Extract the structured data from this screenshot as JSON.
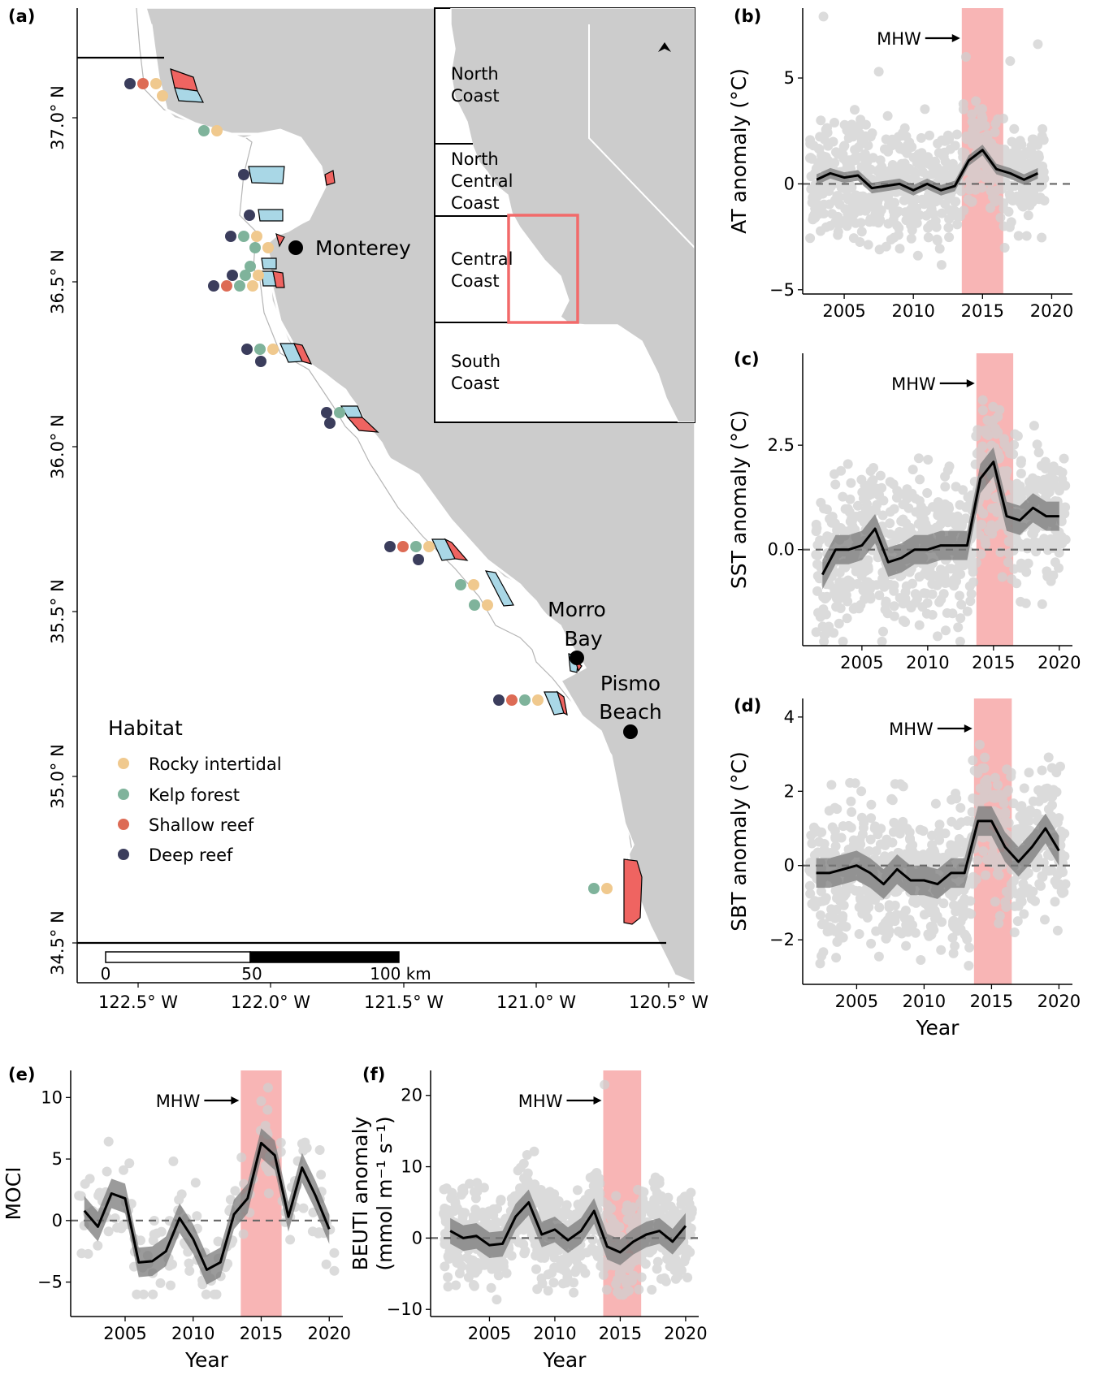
{
  "panel_labels": {
    "a": "(a)",
    "b": "(b)",
    "c": "(c)",
    "d": "(d)",
    "e": "(e)",
    "f": "(f)"
  },
  "colors": {
    "rocky_intertidal": "#f0c98e",
    "kelp_forest": "#7fb39b",
    "shallow_reef": "#dd6b55",
    "deep_reef": "#3b3d5c",
    "mpa_fill_red": "#ef6461",
    "mpa_fill_blue": "#a9d7e6",
    "land": "#cccccc",
    "mhw_band": "#f7a8a8",
    "points": "#d0d0d0",
    "ribbon": "#7a7a7a",
    "inset_box": "#f26a6a"
  },
  "map": {
    "lat_labels": [
      "37.0° N",
      "36.5° N",
      "36.0° N",
      "35.5° N",
      "35.0° N",
      "34.5° N"
    ],
    "lon_labels": [
      "122.5° W",
      "122.0° W",
      "121.5° W",
      "121.0° W",
      "120.5° W"
    ],
    "places": {
      "monterey": "Monterey",
      "morro": "Morro",
      "bay": "Bay",
      "pismo": "Pismo",
      "beach": "Beach"
    },
    "legend": {
      "title": "Habitat",
      "items": [
        "Rocky intertidal",
        "Kelp forest",
        "Shallow reef",
        "Deep reef"
      ]
    },
    "scalebar": {
      "labels": [
        "0",
        "50",
        "100 km"
      ]
    },
    "inset": {
      "regions": [
        [
          "North",
          "Coast"
        ],
        [
          "North",
          "Central",
          "Coast"
        ],
        [
          "Central",
          "Coast"
        ],
        [
          "South",
          "Coast"
        ]
      ]
    }
  },
  "chart_data": [
    {
      "panel": "b",
      "type": "line",
      "ylabel": "AT anomaly (°C)",
      "xlabel": "",
      "annotation": "MHW",
      "mhw_period": [
        2013.5,
        2016.5
      ],
      "xlim": [
        2002,
        2021.5
      ],
      "ylim": [
        -5.2,
        8.3
      ],
      "xticks": [
        2005,
        2010,
        2015,
        2020
      ],
      "yticks": [
        -5,
        0,
        5
      ],
      "mean_line": {
        "x": [
          2003,
          2004,
          2005,
          2006,
          2007,
          2008,
          2009,
          2010,
          2011,
          2012,
          2013,
          2014,
          2015,
          2016,
          2017,
          2018,
          2019
        ],
        "y": [
          0.2,
          0.5,
          0.3,
          0.4,
          -0.2,
          -0.1,
          0.0,
          -0.3,
          0.0,
          -0.3,
          -0.1,
          1.1,
          1.6,
          0.7,
          0.5,
          0.2,
          0.5
        ]
      },
      "ribbon_halfwidth": 0.25,
      "points_range": [
        -4.5,
        5
      ],
      "outliers": [
        [
          2003.5,
          7.9
        ],
        [
          2007.5,
          5.3
        ],
        [
          2013.8,
          6.0
        ],
        [
          2017,
          5.8
        ],
        [
          2019,
          6.6
        ]
      ]
    },
    {
      "panel": "c",
      "type": "line",
      "ylabel": "SST anomaly (°C)",
      "xlabel": "",
      "annotation": "MHW",
      "mhw_period": [
        2013.7,
        2016.5
      ],
      "xlim": [
        2000.5,
        2021
      ],
      "ylim": [
        -2.3,
        4.7
      ],
      "xticks": [
        2005,
        2010,
        2015,
        2020
      ],
      "yticks": [
        0.0,
        2.5
      ],
      "mean_line": {
        "x": [
          2002,
          2003,
          2004,
          2005,
          2006,
          2007,
          2008,
          2009,
          2010,
          2011,
          2012,
          2013,
          2014,
          2015,
          2016,
          2017,
          2018,
          2019,
          2020
        ],
        "y": [
          -0.6,
          0.0,
          0.0,
          0.1,
          0.5,
          -0.3,
          -0.2,
          0.0,
          0.0,
          0.1,
          0.1,
          0.1,
          1.7,
          2.1,
          0.8,
          0.7,
          1.0,
          0.8,
          0.8
        ]
      },
      "ribbon_halfwidth": 0.35,
      "points_range": [
        -2.2,
        4.3
      ],
      "outliers": []
    },
    {
      "panel": "d",
      "type": "line",
      "ylabel": "SBT anomaly (°C)",
      "xlabel": "Year",
      "annotation": "MHW",
      "mhw_period": [
        2013.7,
        2016.5
      ],
      "xlim": [
        2001,
        2021
      ],
      "ylim": [
        -3.2,
        4.5
      ],
      "xticks": [
        2005,
        2010,
        2015,
        2020
      ],
      "yticks": [
        -2,
        0,
        2,
        4
      ],
      "mean_line": {
        "x": [
          2002,
          2003,
          2004,
          2005,
          2006,
          2007,
          2008,
          2009,
          2010,
          2011,
          2012,
          2013,
          2014,
          2015,
          2016,
          2017,
          2018,
          2019,
          2020
        ],
        "y": [
          -0.2,
          -0.2,
          -0.1,
          0.0,
          -0.2,
          -0.5,
          -0.1,
          -0.4,
          -0.4,
          -0.5,
          -0.2,
          -0.2,
          1.2,
          1.2,
          0.5,
          0.1,
          0.5,
          1.0,
          0.4
        ]
      },
      "ribbon_halfwidth": 0.4,
      "points_range": [
        -2.8,
        4.2
      ],
      "outliers": []
    },
    {
      "panel": "e",
      "type": "line",
      "ylabel": "MOCI",
      "xlabel": "Year",
      "annotation": "MHW",
      "mhw_period": [
        2013.5,
        2016.5
      ],
      "xlim": [
        2001,
        2021
      ],
      "ylim": [
        -7.8,
        12.2
      ],
      "xticks": [
        2005,
        2010,
        2015,
        2020
      ],
      "yticks": [
        -5,
        0,
        5,
        10
      ],
      "mean_line": {
        "x": [
          2002,
          2003,
          2004,
          2005,
          2006,
          2007,
          2008,
          2009,
          2010,
          2011,
          2012,
          2013,
          2014,
          2015,
          2016,
          2017,
          2018,
          2019,
          2020
        ],
        "y": [
          0.8,
          -0.5,
          2.2,
          1.8,
          -3.4,
          -3.3,
          -2.5,
          0.2,
          -1.5,
          -4.0,
          -3.4,
          0.5,
          1.8,
          6.3,
          5.3,
          0.3,
          4.3,
          2.0,
          -0.7
        ]
      },
      "ribbon_halfwidth": 1.2,
      "points_range": [
        -6,
        9
      ],
      "outliers": [
        [
          2015,
          9.7
        ],
        [
          2015.5,
          10.8
        ]
      ]
    },
    {
      "panel": "f",
      "type": "line",
      "ylabel": "BEUTI anomaly (mmol m⁻¹ s⁻¹)",
      "xlabel": "Year",
      "annotation": "MHW",
      "mhw_period": [
        2013.7,
        2016.6
      ],
      "xlim": [
        2000.5,
        2021
      ],
      "ylim": [
        -11,
        23.5
      ],
      "xticks": [
        2005,
        2010,
        2015,
        2020
      ],
      "yticks": [
        -10,
        0,
        10,
        20
      ],
      "mean_line": {
        "x": [
          2002,
          2003,
          2004,
          2005,
          2006,
          2007,
          2008,
          2009,
          2010,
          2011,
          2012,
          2013,
          2014,
          2015,
          2016,
          2017,
          2018,
          2019,
          2020
        ],
        "y": [
          1.0,
          0.0,
          0.3,
          -1.0,
          -0.8,
          3.0,
          5.0,
          0.5,
          1.2,
          -0.3,
          1.0,
          3.8,
          -1.2,
          -2.0,
          -0.5,
          0.5,
          1.0,
          -0.5,
          1.7
        ]
      },
      "ribbon_halfwidth": 1.8,
      "points_range": [
        -10,
        14
      ],
      "outliers": [
        [
          2013.8,
          21.5
        ]
      ]
    }
  ]
}
